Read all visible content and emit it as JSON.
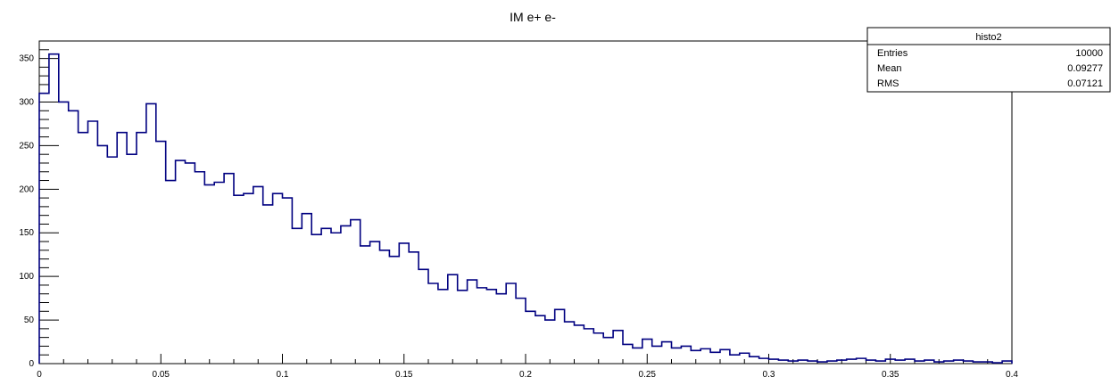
{
  "chart_data": {
    "type": "histogram",
    "title": "IM e+ e-",
    "xlabel": "",
    "ylabel": "",
    "xlim": [
      0,
      0.4
    ],
    "ylim": [
      0,
      370
    ],
    "x_ticks": [
      0,
      0.05,
      0.1,
      0.15,
      0.2,
      0.25,
      0.3,
      0.35,
      0.4
    ],
    "x_tick_labels": [
      "0",
      "0.05",
      "0.1",
      "0.15",
      "0.2",
      "0.25",
      "0.3",
      "0.35",
      "0.4"
    ],
    "y_ticks": [
      0,
      50,
      100,
      150,
      200,
      250,
      300,
      350
    ],
    "y_tick_labels": [
      "0",
      "50",
      "100",
      "150",
      "200",
      "250",
      "300",
      "350"
    ],
    "line_color": "#000080",
    "bins": {
      "low": 0,
      "high": 0.4,
      "count": 100,
      "counts": [
        310,
        355,
        300,
        290,
        265,
        278,
        250,
        237,
        265,
        240,
        265,
        298,
        255,
        210,
        233,
        230,
        220,
        205,
        208,
        218,
        193,
        195,
        203,
        182,
        195,
        190,
        155,
        172,
        148,
        155,
        150,
        158,
        165,
        135,
        140,
        130,
        123,
        138,
        128,
        108,
        92,
        85,
        102,
        84,
        96,
        87,
        85,
        80,
        92,
        75,
        60,
        55,
        50,
        62,
        48,
        44,
        40,
        35,
        30,
        38,
        22,
        18,
        28,
        20,
        25,
        18,
        20,
        15,
        17,
        13,
        16,
        10,
        12,
        8,
        6,
        5,
        4,
        3,
        4,
        3,
        2,
        3,
        4,
        5,
        6,
        4,
        3,
        5,
        4,
        5,
        3,
        4,
        2,
        3,
        4,
        3,
        2,
        2,
        1,
        3
      ]
    },
    "stats_box": {
      "name": "histo2",
      "rows": [
        {
          "label": "Entries",
          "value": "10000"
        },
        {
          "label": "Mean",
          "value": "0.09277"
        },
        {
          "label": "RMS",
          "value": "0.07121"
        }
      ]
    }
  }
}
